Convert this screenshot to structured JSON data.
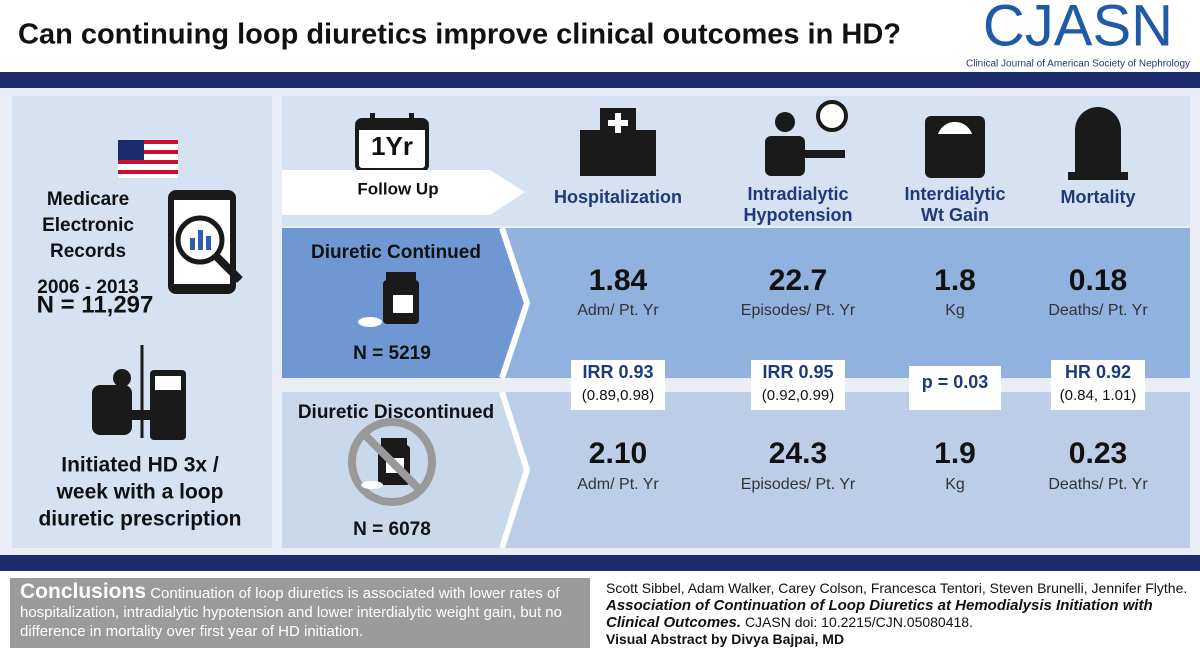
{
  "header": {
    "title": "Can continuing loop diuretics improve clinical outcomes in HD?"
  },
  "logo": {
    "name": "CJASN",
    "subtitle": "Clinical Journal of American Society of Nephrology"
  },
  "left": {
    "source": [
      "Medicare",
      "Electronic",
      "Records",
      "2006 - 2013"
    ],
    "n": "N = 11,297",
    "population": [
      "Initiated HD 3x /",
      "week with a loop",
      "diuretic prescription"
    ]
  },
  "timeline": {
    "calendar": "1Yr",
    "label": "Follow Up"
  },
  "groups": {
    "continued": {
      "label": "Diuretic Continued",
      "n": "N = 5219"
    },
    "discontinued": {
      "label": "Diuretic Discontinued",
      "n": "N = 6078"
    }
  },
  "outcomes": [
    {
      "name": [
        "Hospitalization"
      ],
      "continued": {
        "value": "1.84",
        "unit": "Adm/ Pt. Yr"
      },
      "discontinued": {
        "value": "2.10",
        "unit": "Adm/ Pt. Yr"
      },
      "stat": [
        "IRR 0.93",
        "(0.89,0.98)"
      ]
    },
    {
      "name": [
        "Intradialytic",
        "Hypotension"
      ],
      "continued": {
        "value": "22.7",
        "unit": "Episodes/ Pt. Yr"
      },
      "discontinued": {
        "value": "24.3",
        "unit": "Episodes/ Pt. Yr"
      },
      "stat": [
        "IRR 0.95",
        "(0.92,0.99)"
      ]
    },
    {
      "name": [
        "Interdialytic",
        "Wt Gain"
      ],
      "continued": {
        "value": "1.8",
        "unit": "Kg"
      },
      "discontinued": {
        "value": "1.9",
        "unit": "Kg"
      },
      "stat": [
        "p = 0.03"
      ]
    },
    {
      "name": [
        "Mortality"
      ],
      "continued": {
        "value": "0.18",
        "unit": "Deaths/ Pt. Yr"
      },
      "discontinued": {
        "value": "0.23",
        "unit": "Deaths/ Pt. Yr"
      },
      "stat": [
        "HR 0.92",
        "(0.84, 1.01)"
      ]
    }
  ],
  "conclusions": {
    "heading": "Conclusions",
    "text": "Continuation of loop diuretics is associated with lower rates of hospitalization, intradialytic hypotension and lower interdialytic weight gain, but no difference in mortality over first year of HD initiation."
  },
  "citation": {
    "authors": "Scott Sibbel, Adam Walker, Carey Colson, Francesca Tentori, Steven Brunelli, Jennifer Flythe.",
    "title": "Association of Continuation of Loop Diuretics at Hemodialysis Initiation with Clinical Outcomes.",
    "doi": "CJASN doi: 10.2215/CJN.05080418.",
    "credit": "Visual Abstract by Divya Bajpai, MD"
  }
}
